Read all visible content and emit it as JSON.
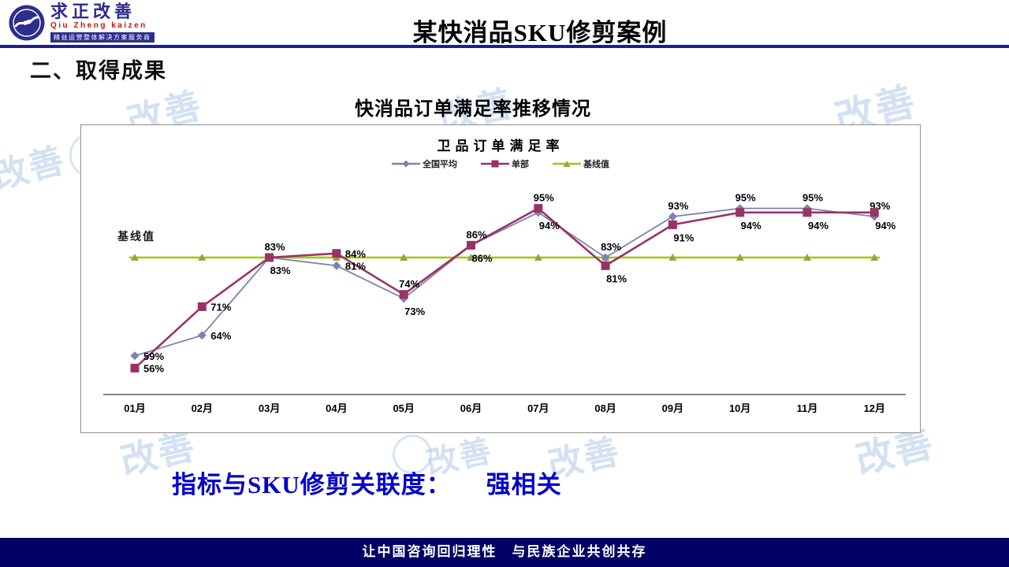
{
  "header": {
    "logo": {
      "name_cn": "求正改善",
      "name_en": "Qiu Zheng kaizen",
      "tagline": "精益运营整体解决方案服务商"
    },
    "title": "某快消品SKU修剪案例"
  },
  "section_heading": "二、取得成果",
  "chart_heading": "快消品订单满足率推移情况",
  "conclusion": {
    "label": "指标与SKU修剪关联度：",
    "value": "强相关"
  },
  "footer": {
    "slogan": "让中国咨询回归理性　与民族企业共创共存"
  },
  "watermark": {
    "text": "改善"
  },
  "chart_data": {
    "type": "line",
    "title": "卫品订单满足率",
    "categories": [
      "01月",
      "02月",
      "03月",
      "04月",
      "05月",
      "06月",
      "07月",
      "08月",
      "09月",
      "10月",
      "11月",
      "12月"
    ],
    "unit": "%",
    "ylim": [
      50,
      100
    ],
    "grid": false,
    "legend_position": "top",
    "baseline_label": "基线值",
    "series": [
      {
        "name": "全国平均",
        "type": "line",
        "marker": "diamond",
        "color": "#8181B1",
        "values": [
          59,
          64,
          83,
          81,
          73,
          86,
          94,
          83,
          93,
          95,
          95,
          93
        ],
        "label_placement": [
          "right",
          "right",
          "below",
          "right",
          "below",
          "below",
          "below",
          "above",
          "above",
          "above",
          "above",
          "above"
        ]
      },
      {
        "name": "单部",
        "type": "line",
        "marker": "square",
        "color": "#993366",
        "values": [
          56,
          71,
          83,
          84,
          74,
          86,
          95,
          81,
          91,
          94,
          94,
          94
        ],
        "label_placement": [
          "right",
          "right",
          "above",
          "right",
          "above",
          "above",
          "above",
          "below",
          "below",
          "below",
          "below",
          "below"
        ]
      },
      {
        "name": "基线值",
        "type": "baseline",
        "marker": "triangle",
        "color": "#9ACC04",
        "marker_color": "#97A443",
        "value": 83
      }
    ]
  }
}
